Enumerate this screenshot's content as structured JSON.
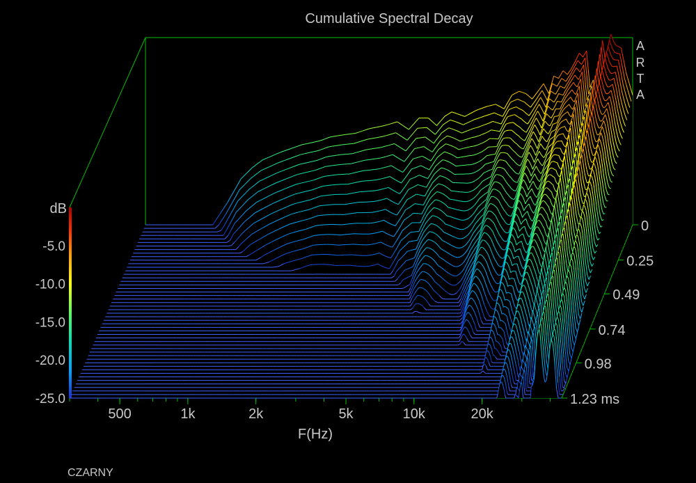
{
  "chart_data": {
    "type": "waterfall-3d",
    "title": "Cumulative Spectral Decay",
    "xlabel": "F(Hz)",
    "x_scale": "log",
    "x_ticks": [
      {
        "value": 500,
        "label": "500"
      },
      {
        "value": 1000,
        "label": "1k"
      },
      {
        "value": 2000,
        "label": "2k"
      },
      {
        "value": 5000,
        "label": "5k"
      },
      {
        "value": 10000,
        "label": "10k"
      },
      {
        "value": 20000,
        "label": "20k"
      }
    ],
    "xlim": [
      300,
      45000
    ],
    "z_label": "dB",
    "z_ticks": [
      "-5.0",
      "-10.0",
      "-15.0",
      "-20.0",
      "-25.0"
    ],
    "zlim": [
      -25,
      0
    ],
    "t_unit": "ms",
    "t_ticks": [
      {
        "value": 0,
        "label": "0"
      },
      {
        "value": 0.25,
        "label": "0.25"
      },
      {
        "value": 0.49,
        "label": "0.49"
      },
      {
        "value": 0.74,
        "label": "0.74"
      },
      {
        "value": 0.98,
        "label": "0.98"
      },
      {
        "value": 1.23,
        "label": "1.23 ms"
      }
    ],
    "tlim": [
      0,
      1.23
    ],
    "slice_count": 50,
    "response_at_t0": {
      "freq_hz": [
        300,
        600,
        700,
        800,
        900,
        1000,
        1200,
        1500,
        1800,
        2000,
        2300,
        2600,
        3000,
        3500,
        4000,
        4500,
        5000,
        5500,
        6000,
        6500,
        7000,
        7500,
        8000,
        9000,
        10000,
        11000,
        12000,
        13000,
        14000,
        15000,
        16000,
        17000,
        18000,
        19000,
        20000,
        21000,
        22000,
        23000,
        24000,
        25000,
        26000,
        27000,
        28000,
        29000,
        30000,
        31000,
        32000,
        33000,
        34000,
        35000,
        36000,
        37000,
        38000,
        40000,
        42000,
        45000
      ],
      "db": [
        -25,
        -25,
        -22,
        -19,
        -17.5,
        -16.5,
        -15.5,
        -14.5,
        -14,
        -13.5,
        -13.2,
        -13,
        -12.4,
        -12,
        -11.5,
        -12.5,
        -11,
        -11,
        -12,
        -10.8,
        -10.2,
        -10.5,
        -10.8,
        -10,
        -9.5,
        -9.2,
        -9.8,
        -8,
        -7.5,
        -7.8,
        -8.5,
        -7.5,
        -6.5,
        -7.8,
        -5.5,
        -5.8,
        -4.8,
        -5.3,
        -4.5,
        -3.5,
        -2.5,
        -3,
        -2.2,
        -7,
        -6,
        -10,
        -5,
        -0.8,
        -3.5,
        -1.5,
        0,
        -1,
        -1.5,
        -1.8,
        -5,
        -8
      ]
    },
    "colorbar": [
      "#1a2fd0",
      "#00a2ff",
      "#00e0b8",
      "#57ff5a",
      "#ffff00",
      "#ffa000",
      "#ff3000",
      "#b00000"
    ],
    "floor_color": "#4060ff",
    "frame_color": "#00c000"
  },
  "brand_letters": [
    "A",
    "R",
    "T",
    "A"
  ],
  "footer_label": "CZARNY"
}
